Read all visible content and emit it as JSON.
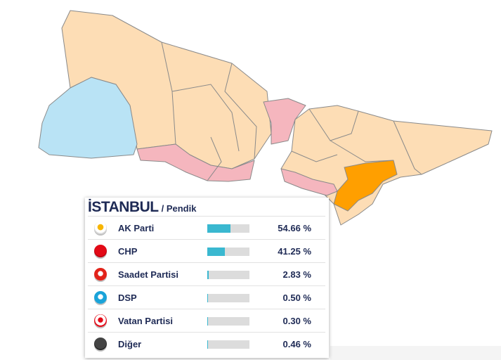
{
  "header": {
    "title": "İSTANBUL",
    "subtitle": "/ Pendik"
  },
  "results": [
    {
      "party": "AK Parti",
      "percent": 54.66,
      "label": "54.66 %"
    },
    {
      "party": "CHP",
      "percent": 41.25,
      "label": "41.25 %"
    },
    {
      "party": "Saadet Partisi",
      "percent": 2.83,
      "label": "2.83 %"
    },
    {
      "party": "DSP",
      "percent": 0.5,
      "label": "0.50 %"
    },
    {
      "party": "Vatan Partisi",
      "percent": 0.3,
      "label": "0.30 %"
    },
    {
      "party": "Diğer",
      "percent": 0.46,
      "label": "0.46 %"
    }
  ]
}
